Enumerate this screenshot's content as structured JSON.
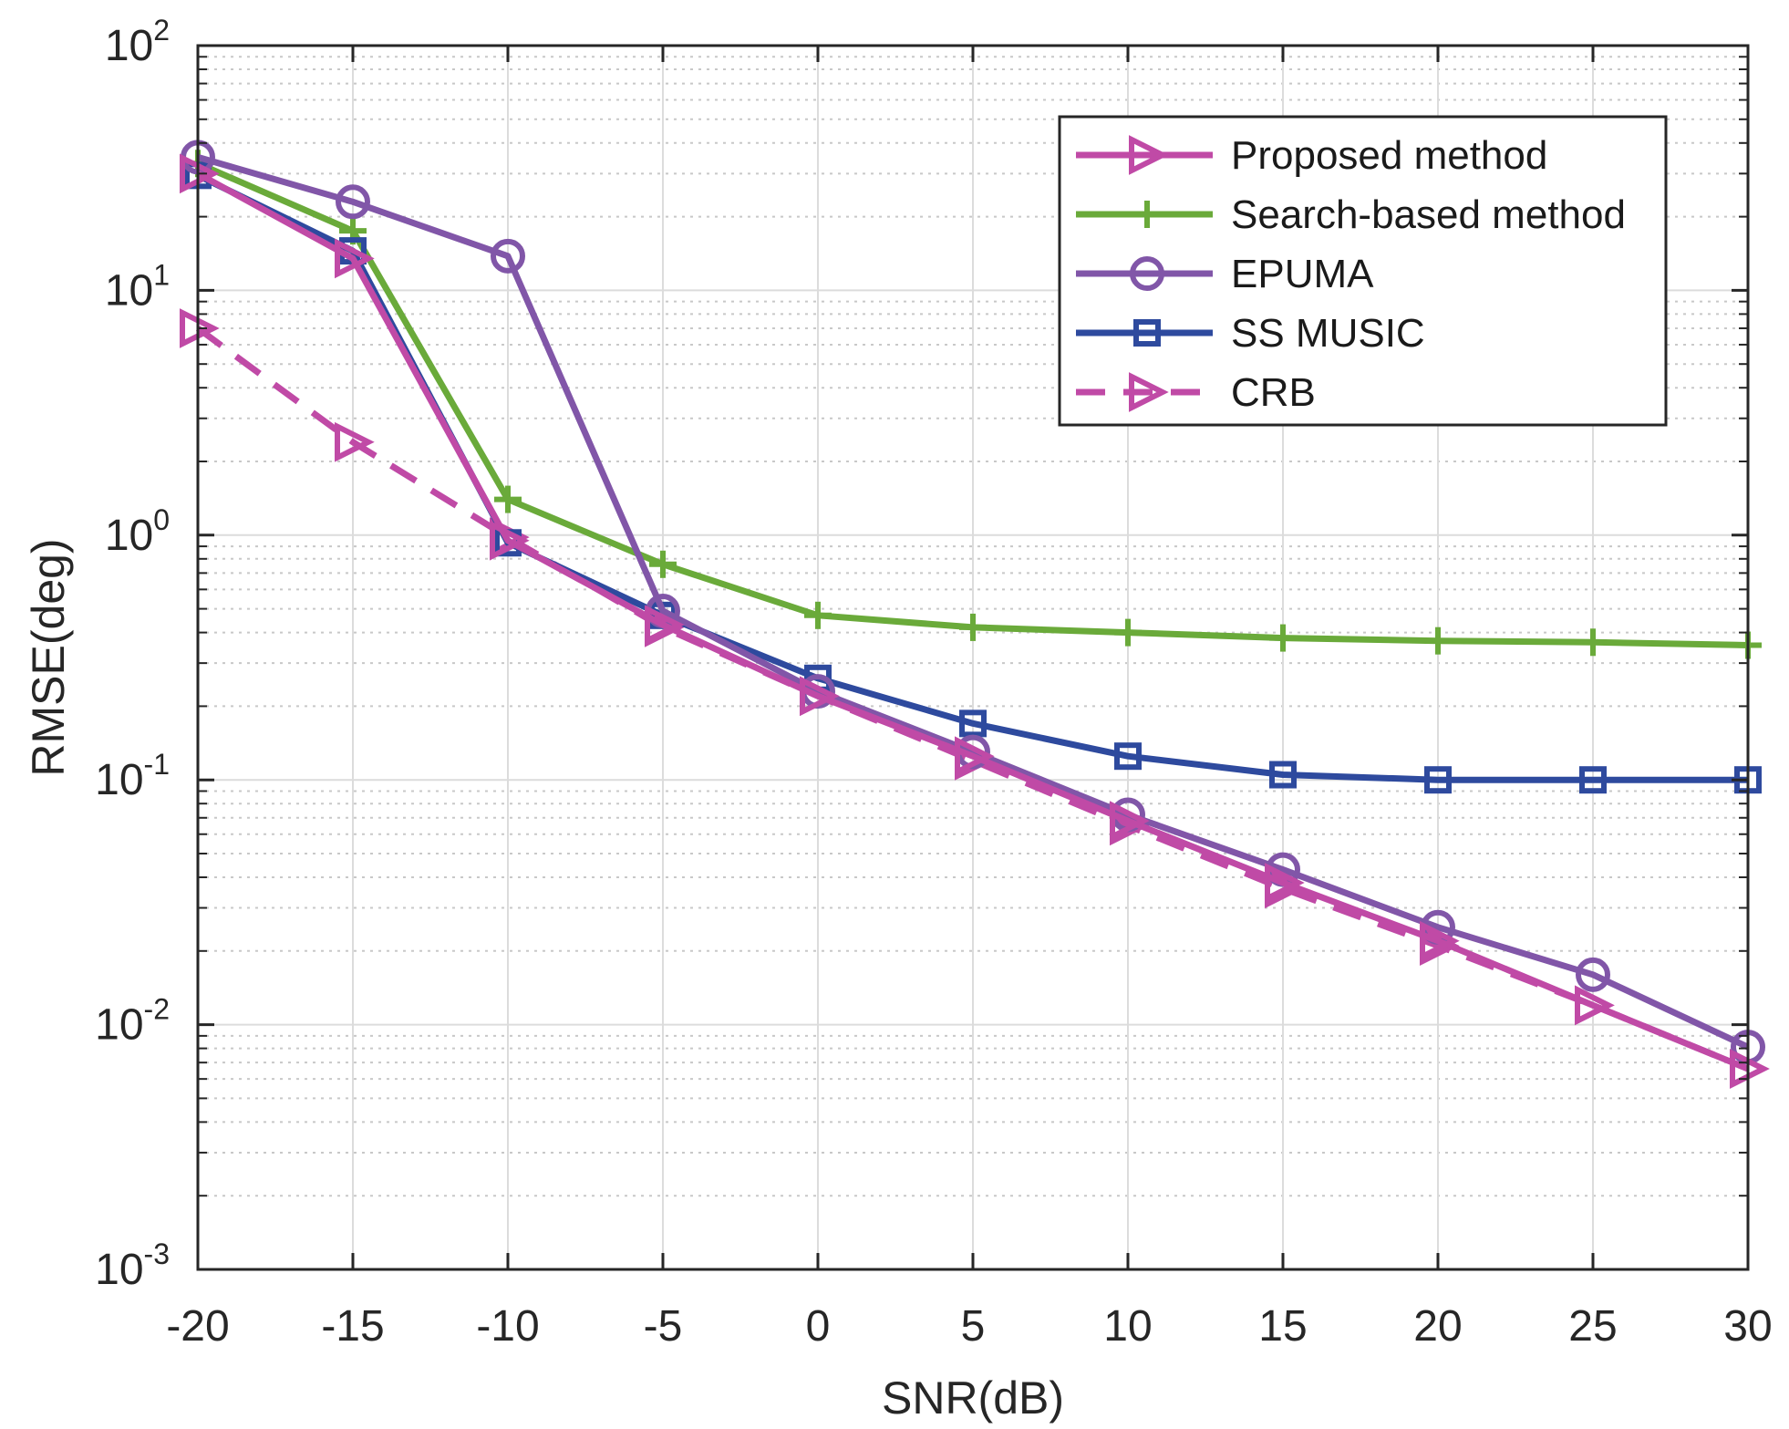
{
  "chart_data": {
    "type": "line",
    "title": "",
    "xlabel": "SNR(dB)",
    "ylabel": "RMSE(deg)",
    "yscale": "log",
    "grid": true,
    "minor_grid": true,
    "legend_position": "top-right",
    "xlim": [
      -20,
      30
    ],
    "ylim": [
      0.001,
      100
    ],
    "x": [
      -20,
      -15,
      -10,
      -5,
      0,
      5,
      10,
      15,
      20,
      25,
      30
    ],
    "x_ticks": [
      "-20",
      "-15",
      "-10",
      "-5",
      "0",
      "5",
      "10",
      "15",
      "20",
      "25",
      "30"
    ],
    "y_ticks": [
      {
        "value": 0.001,
        "base": "10",
        "exp": "-3"
      },
      {
        "value": 0.01,
        "base": "10",
        "exp": "-2"
      },
      {
        "value": 0.1,
        "base": "10",
        "exp": "-1"
      },
      {
        "value": 1,
        "base": "10",
        "exp": "0"
      },
      {
        "value": 10,
        "base": "10",
        "exp": "1"
      },
      {
        "value": 100,
        "base": "10",
        "exp": "2"
      }
    ],
    "series": [
      {
        "name": "Proposed method",
        "color": "#c04aa6",
        "marker": "triangle-right",
        "dash": "solid",
        "values": [
          30,
          13.5,
          0.95,
          0.43,
          0.22,
          0.125,
          0.068,
          0.038,
          0.022,
          0.012,
          0.0066
        ]
      },
      {
        "name": "Search-based method",
        "color": "#6aaa3a",
        "marker": "plus",
        "dash": "solid",
        "values": [
          33,
          17.5,
          1.4,
          0.76,
          0.47,
          0.42,
          0.4,
          0.38,
          0.37,
          0.365,
          0.355
        ]
      },
      {
        "name": "EPUMA",
        "color": "#8156a8",
        "marker": "circle",
        "dash": "solid",
        "values": [
          35,
          23,
          13.8,
          0.49,
          0.23,
          0.13,
          0.072,
          0.043,
          0.025,
          0.016,
          0.0081
        ]
      },
      {
        "name": "SS MUSIC",
        "color": "#2e4a9e",
        "marker": "square",
        "dash": "solid",
        "values": [
          29.5,
          14.5,
          0.93,
          0.47,
          0.26,
          0.17,
          0.125,
          0.105,
          0.1,
          0.1,
          0.1
        ]
      },
      {
        "name": "CRB",
        "color": "#c04aa6",
        "marker": "triangle-right",
        "dash": "dashed",
        "values": [
          7,
          2.4,
          0.98,
          0.42,
          0.22,
          0.12,
          0.065,
          0.036,
          0.021,
          0.012,
          0.0066
        ]
      }
    ]
  }
}
